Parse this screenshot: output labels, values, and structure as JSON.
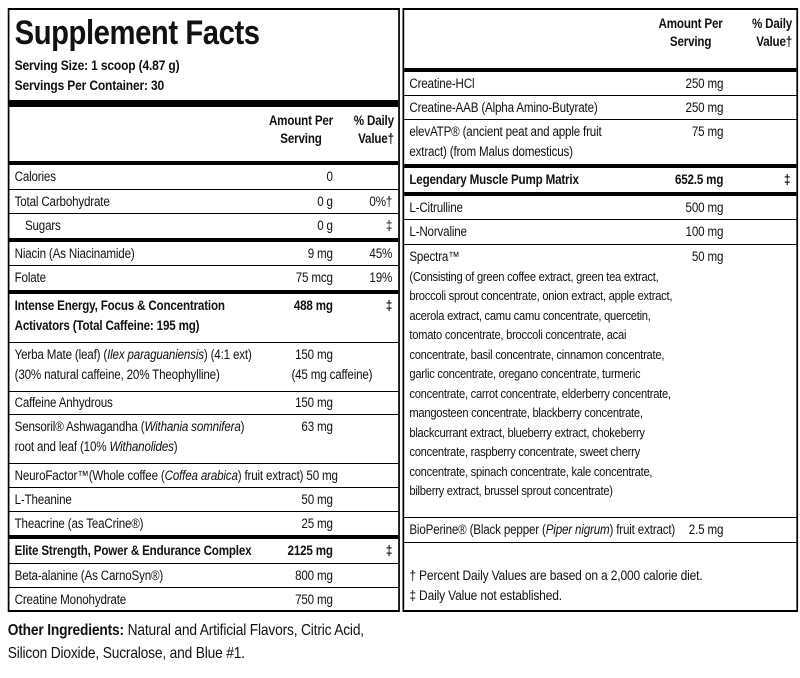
{
  "title": "Supplement Facts",
  "serving_size": "Serving Size: 1 scoop (4.87 g)",
  "servings_per_container": "Servings Per Container: 30",
  "column_headers": {
    "amount": "Amount Per Serving",
    "daily_value": "% Daily Value†"
  },
  "left_rows": [
    {
      "name": "Calories",
      "amount": "0"
    },
    {
      "name": "Total Carbohydrate",
      "amount": "0 g",
      "daily_value": "0%†"
    },
    {
      "name": "Sugars",
      "amount": "0 g",
      "daily_value": "‡"
    },
    {
      "name": "Niacin (As Niacinamide)",
      "amount": "9 mg",
      "daily_value": "45%"
    },
    {
      "name": "Folate",
      "amount": "75 mcg",
      "daily_value": "19%"
    },
    {
      "name": "Intense Energy, Focus & Concentration Activators (Total Caffeine: 195 mg)",
      "amount": "488 mg",
      "daily_value": "‡"
    },
    {
      "name": [
        "Yerba Mate (leaf) (",
        "Ilex paraguaniensis",
        ") (4:1 ext)"
      ],
      "detail": "(30% natural caffeine, 20% Theophylline)",
      "amount": "150 mg",
      "amount_detail": "(45 mg caffeine)"
    },
    {
      "name": "Caffeine Anhydrous",
      "amount": "150 mg"
    },
    {
      "name": [
        "Sensoril® Ashwagandha (",
        "Withania somnifera",
        ")",
        "root and leaf (10% ",
        "Withanolides",
        ")"
      ],
      "amount": "63 mg"
    },
    {
      "name": [
        "NeuroFactor™(Whole coffee (",
        "Coffea arabica",
        ") fruit extract)"
      ],
      "amount": "50 mg"
    },
    {
      "name": "L-Theanine",
      "amount": "50 mg"
    },
    {
      "name": "Theacrine (as TeaCrine®)",
      "amount": "25 mg"
    },
    {
      "name": "Elite Strength, Power & Endurance Complex",
      "amount": "2125 mg",
      "daily_value": "‡"
    },
    {
      "name": "Beta-alanine (As CarnoSyn®)",
      "amount": "800 mg"
    },
    {
      "name": "Creatine Monohydrate",
      "amount": "750 mg"
    }
  ],
  "right_rows": [
    {
      "name": "Creatine-HCl",
      "amount": "250 mg"
    },
    {
      "name": "Creatine-AAB (Alpha Amino-Butyrate)",
      "amount": "250 mg"
    },
    {
      "name": "elevATP® (ancient peat and apple fruit extract) (from Malus domesticus)",
      "amount": "75 mg"
    },
    {
      "name": "Legendary Muscle Pump Matrix",
      "amount": "652.5 mg",
      "daily_value": "‡"
    },
    {
      "name": "L-Citrulline",
      "amount": "500 mg"
    },
    {
      "name": "L-Norvaline",
      "amount": "100 mg"
    },
    {
      "name": "Spectra™",
      "detail": "(Consisting of green coffee extract, green tea extract, broccoli sprout concentrate, onion extract, apple extract, acerola extract, camu camu concentrate, quercetin, tomato concentrate, broccoli concentrate, acai concentrate, basil concentrate, cinnamon concentrate, garlic concentrate, oregano concentrate, turmeric concentrate, carrot concentrate, elderberry concentrate, mangosteen concentrate, blackberry concentrate, blackcurrant extract, blueberry extract, chokeberry concentrate, raspberry concentrate, sweet cherry concentrate, spinach concentrate, kale concentrate, bilberry extract, brussel sprout concentrate)",
      "amount": "50 mg"
    },
    {
      "name": [
        "BioPerine® (Black pepper (",
        "Piper nigrum",
        ") fruit extract)"
      ],
      "amount": "2.5 mg"
    }
  ],
  "footnotes": [
    "† Percent Daily Values are based on a 2,000 calorie diet.",
    "‡ Daily Value not established."
  ],
  "other_ingredients": {
    "label": "Other Ingredients:",
    "text": "Natural and Artificial Flavors, Citric Acid, Silicon Dioxide, Sucralose, and Blue #1."
  }
}
